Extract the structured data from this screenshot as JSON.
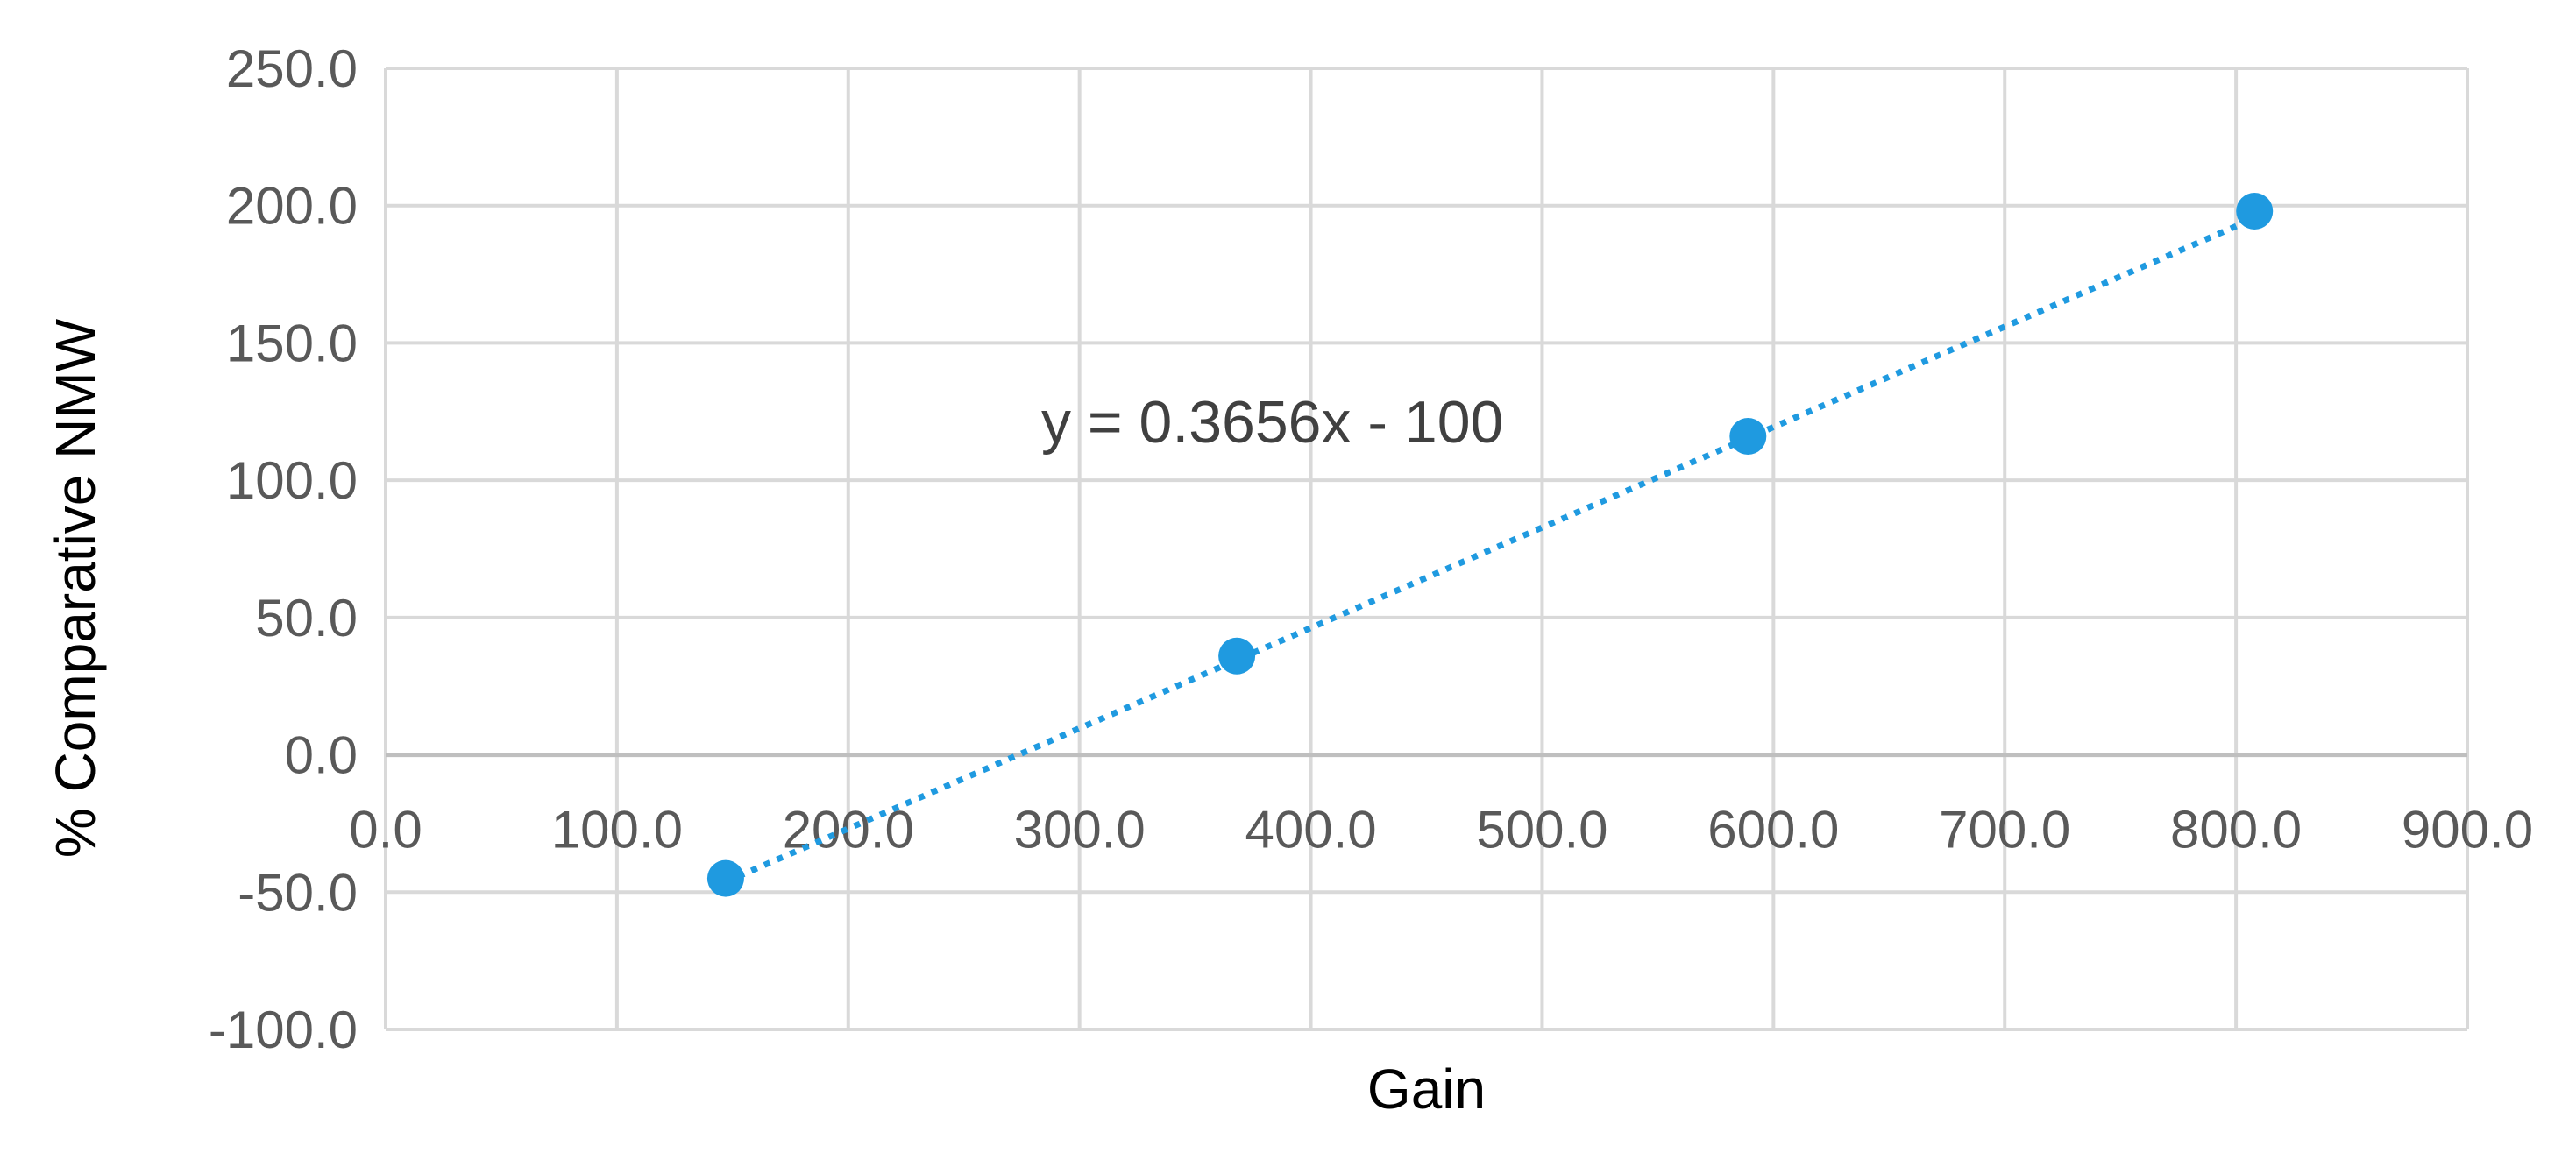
{
  "chart_data": {
    "type": "scatter",
    "xlabel": "Gain",
    "ylabel": "% Comparative NMW",
    "xlim": [
      0,
      900
    ],
    "ylim": [
      -100,
      250
    ],
    "x_ticks": [
      "0.0",
      "100.0",
      "200.0",
      "300.0",
      "400.0",
      "500.0",
      "600.0",
      "700.0",
      "800.0",
      "900.0"
    ],
    "y_ticks": [
      "250.0",
      "200.0",
      "150.0",
      "100.0",
      "50.0",
      "0.0",
      "-50.0",
      "-100.0"
    ],
    "series": [
      {
        "x": [
          147,
          368,
          589,
          808
        ],
        "y": [
          -45,
          36,
          116,
          198
        ],
        "color": "#1f9ae0"
      }
    ],
    "trendline": {
      "slope": 0.3656,
      "intercept": -100,
      "style": "dotted",
      "color": "#1f9ae0",
      "label": "y = 0.3656x - 100"
    },
    "grid": true,
    "legend": "none"
  }
}
